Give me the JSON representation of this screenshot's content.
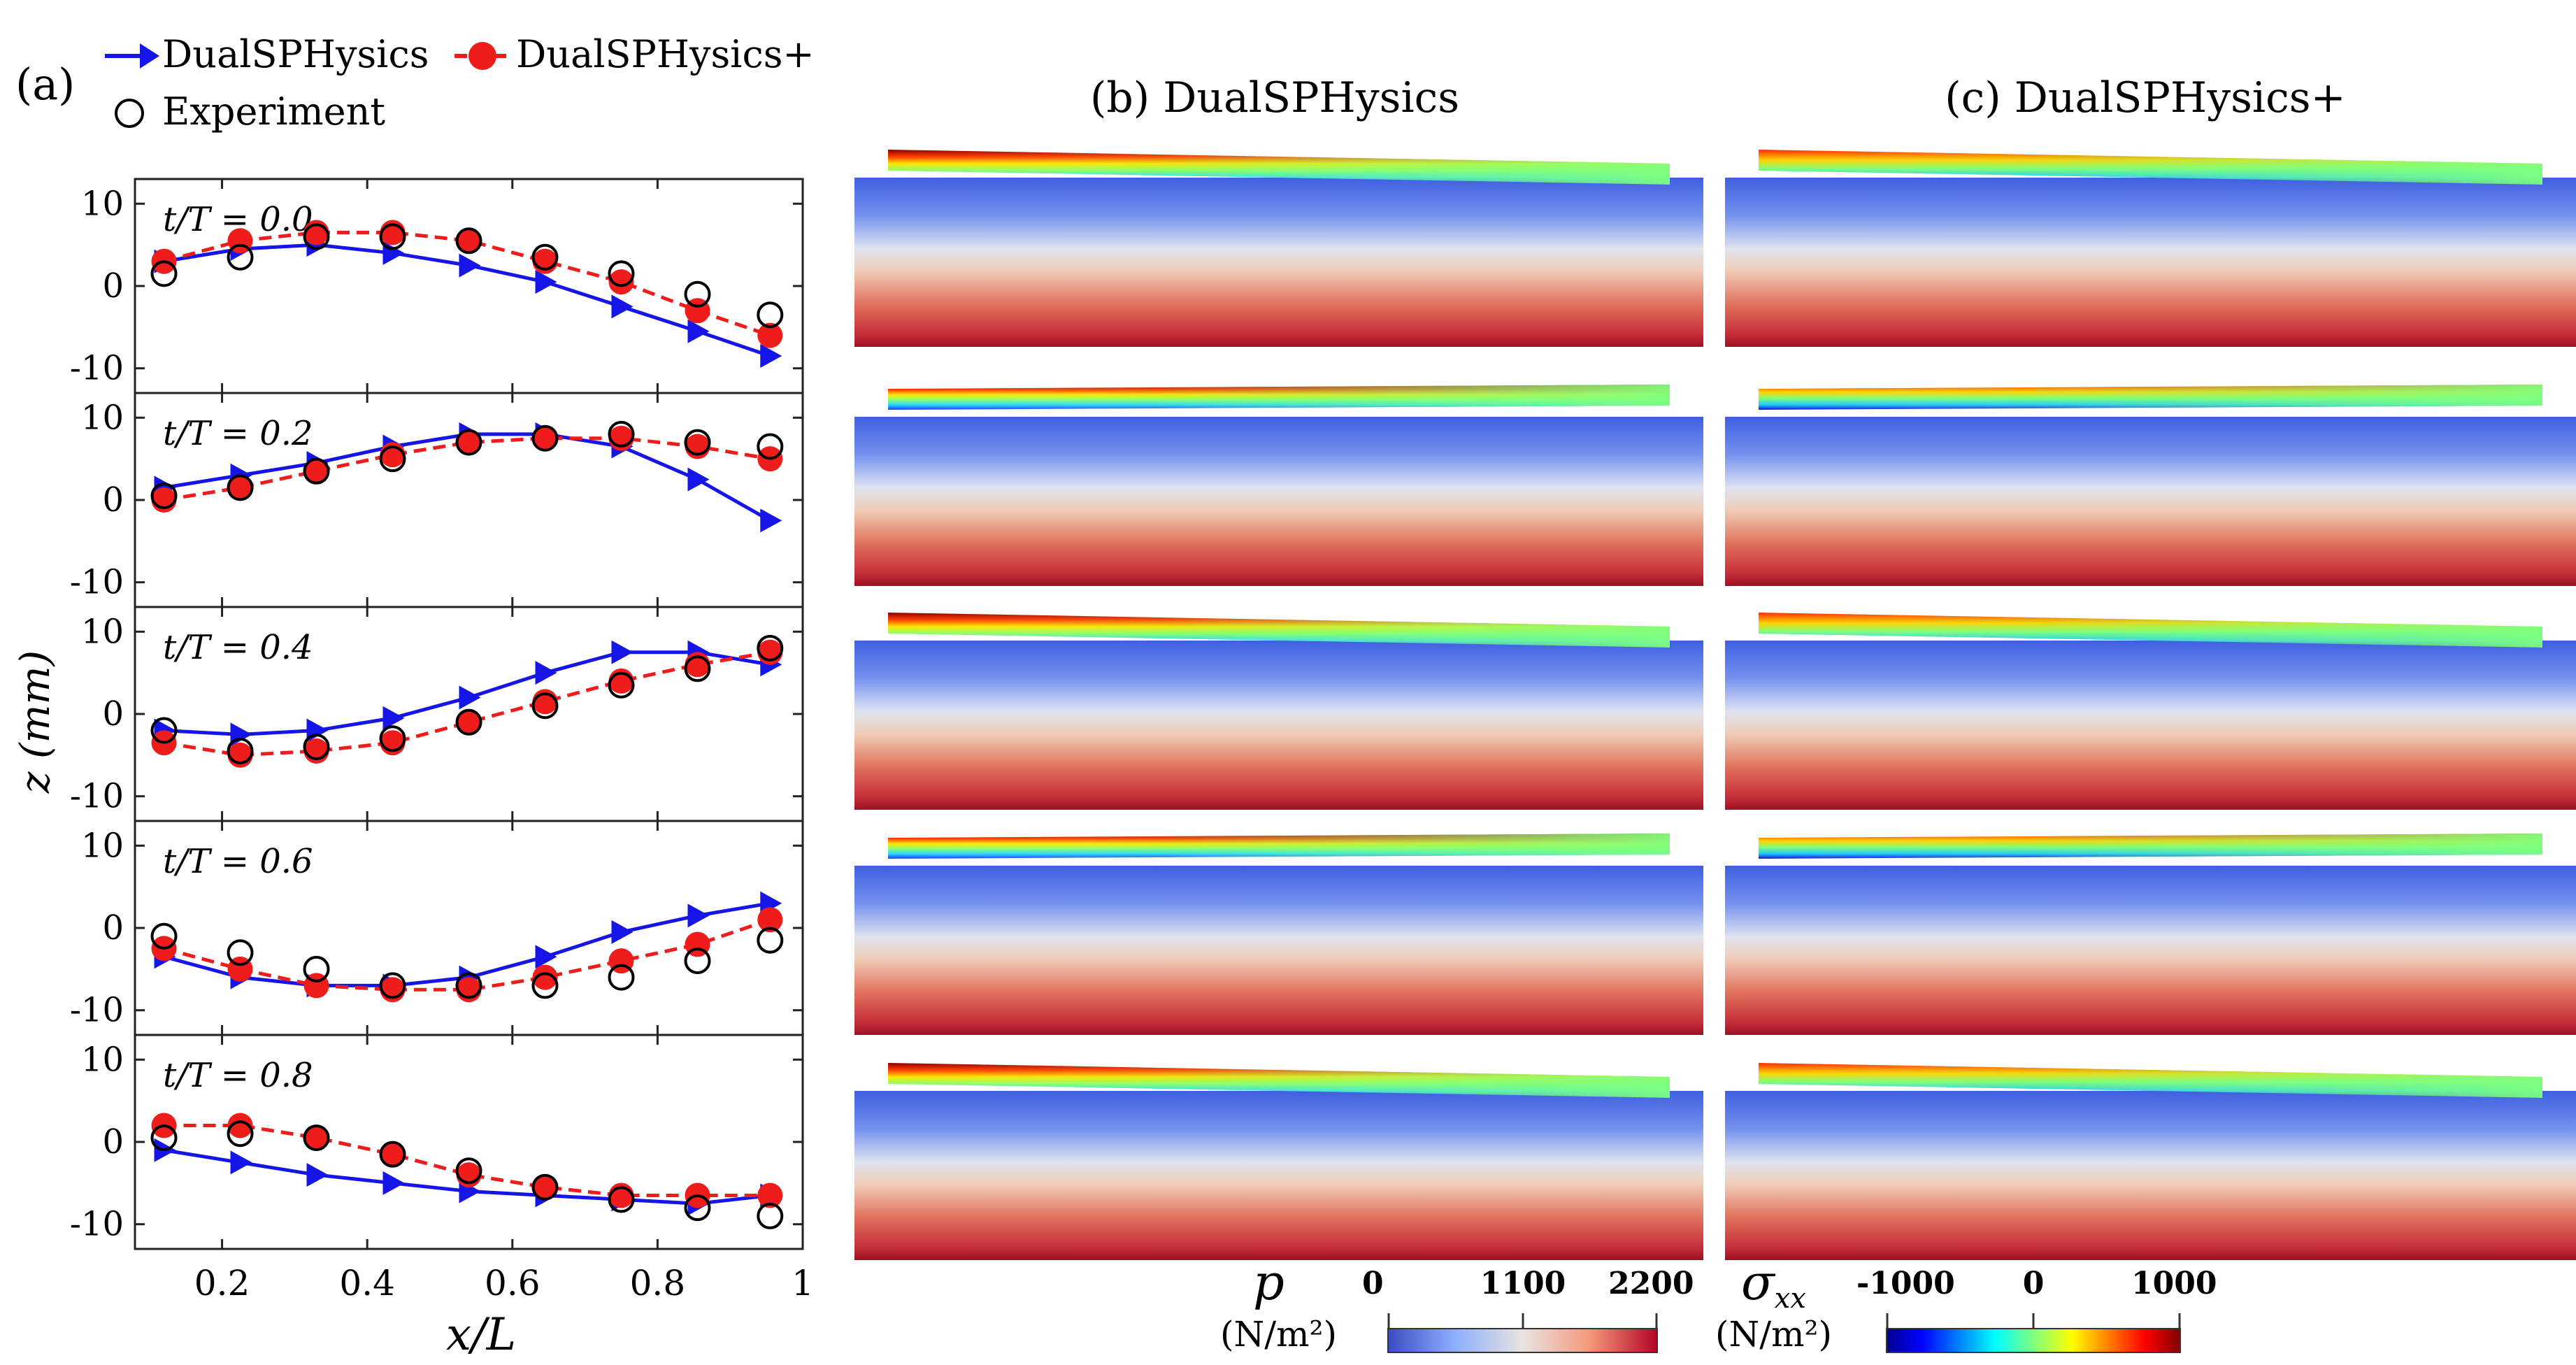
{
  "panel_labels": {
    "a": "(a)",
    "b": "(b) DualSPHysics",
    "c": "(c) DualSPHysics+"
  },
  "legend": {
    "s1": "DualSPHysics",
    "s2": "DualSPHysics+",
    "s3": "Experiment"
  },
  "axes": {
    "xlabel": "x/L",
    "ylabel": "z (mm)",
    "xticks": [
      "0.2",
      "0.4",
      "0.6",
      "0.8",
      "1"
    ],
    "yticks": [
      "10",
      "0",
      "-10"
    ]
  },
  "colorbars": {
    "pressure": {
      "symbol": "p",
      "unit": "(N/m²)",
      "ticks": [
        "0",
        "1100",
        "2200"
      ]
    },
    "stress": {
      "symbol": "σ",
      "subscript": "xx",
      "unit": "(N/m²)",
      "ticks": [
        "-1000",
        "0",
        "1000"
      ]
    }
  },
  "colors": {
    "dual": "#1515e8",
    "dualplus": "#ef1c1c",
    "experiment": "#000000"
  },
  "chart_data": {
    "type": "line",
    "xlabel": "x/L",
    "ylabel": "z (mm)",
    "xlim": [
      0.08,
      1.0
    ],
    "ylim": [
      -13,
      13
    ],
    "x": [
      0.12,
      0.225,
      0.33,
      0.435,
      0.54,
      0.645,
      0.75,
      0.855,
      0.955
    ],
    "subplots": [
      {
        "label": "t/T = 0.0",
        "series": [
          {
            "name": "DualSPHysics",
            "values": [
              3,
              4.5,
              5,
              4,
              2.5,
              0.5,
              -2.5,
              -5.5,
              -8.5
            ]
          },
          {
            "name": "DualSPHysics+",
            "values": [
              3,
              5.5,
              6.5,
              6.5,
              5.5,
              3,
              0.5,
              -3,
              -6
            ]
          },
          {
            "name": "Experiment",
            "values": [
              1.5,
              3.5,
              6,
              6,
              5.5,
              3.5,
              1.5,
              -1,
              -3.5
            ]
          }
        ]
      },
      {
        "label": "t/T = 0.2",
        "series": [
          {
            "name": "DualSPHysics",
            "values": [
              1.5,
              3,
              4.5,
              6.5,
              8,
              8,
              6.5,
              2.5,
              -2.5
            ]
          },
          {
            "name": "DualSPHysics+",
            "values": [
              0,
              1.5,
              3.5,
              5.5,
              7,
              7.5,
              7.5,
              6.5,
              5
            ]
          },
          {
            "name": "Experiment",
            "values": [
              0.5,
              1.5,
              3.5,
              5,
              7,
              7.5,
              8,
              7,
              6.5
            ]
          }
        ]
      },
      {
        "label": "t/T = 0.4",
        "series": [
          {
            "name": "DualSPHysics",
            "values": [
              -2,
              -2.5,
              -2,
              -0.5,
              2,
              5,
              7.5,
              7.5,
              6
            ]
          },
          {
            "name": "DualSPHysics+",
            "values": [
              -3.5,
              -5,
              -4.5,
              -3.5,
              -1,
              1.5,
              4,
              6,
              7.5
            ]
          },
          {
            "name": "Experiment",
            "values": [
              -2,
              -4.5,
              -4,
              -3,
              -1,
              1,
              3.5,
              5.5,
              8
            ]
          }
        ]
      },
      {
        "label": "t/T = 0.6",
        "series": [
          {
            "name": "DualSPHysics",
            "values": [
              -3.5,
              -6,
              -7,
              -7,
              -6,
              -3.5,
              -0.5,
              1.5,
              3
            ]
          },
          {
            "name": "DualSPHysics+",
            "values": [
              -2.5,
              -5,
              -7,
              -7.5,
              -7.5,
              -6,
              -4,
              -2,
              1
            ]
          },
          {
            "name": "Experiment",
            "values": [
              -1,
              -3,
              -5,
              -7,
              -7,
              -7,
              -6,
              -4,
              -1.5
            ]
          }
        ]
      },
      {
        "label": "t/T = 0.8",
        "series": [
          {
            "name": "DualSPHysics",
            "values": [
              -1,
              -2.5,
              -4,
              -5,
              -6,
              -6.5,
              -7,
              -7.5,
              -6.5
            ]
          },
          {
            "name": "DualSPHysics+",
            "values": [
              2,
              2,
              0.5,
              -1.5,
              -4,
              -5.5,
              -6.5,
              -6.5,
              -6.5
            ]
          },
          {
            "name": "Experiment",
            "values": [
              0.5,
              1,
              0.5,
              -1.5,
              -3.5,
              -5.5,
              -7,
              -8,
              -9
            ]
          }
        ]
      }
    ]
  }
}
